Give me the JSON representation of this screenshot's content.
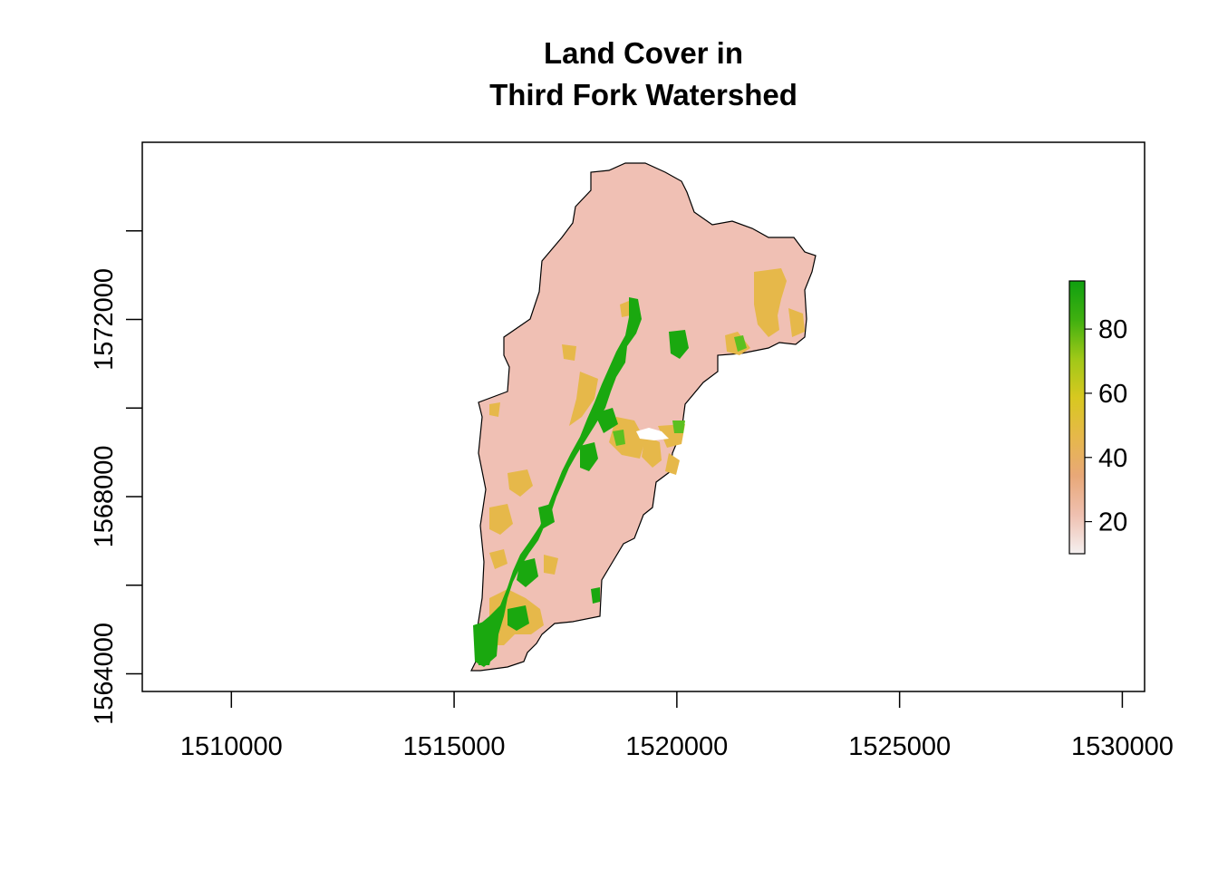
{
  "title": {
    "line1": "Land Cover in",
    "line2": "Third Fork Watershed"
  },
  "map": {
    "x_range": [
      1508000,
      1530500
    ],
    "y_range": [
      1563600,
      1576000
    ],
    "x_ticks": [
      1510000,
      1515000,
      1520000,
      1525000,
      1530000
    ],
    "y_ticks": [
      1564000,
      1566000,
      1568000,
      1570000,
      1572000,
      1574000
    ],
    "x_tick_labels": [
      "1510000",
      "1515000",
      "1520000",
      "1525000",
      "1530000"
    ],
    "y_tick_labels": [
      "1564000",
      "1568000",
      "1572000"
    ],
    "colors": {
      "background_cover": "#f0c0b4",
      "shrub": "#e6b84a",
      "forest": "#1aa80f",
      "light_forest": "#5cc020",
      "white_patch": "#ffffff",
      "outline": "#000000"
    }
  },
  "legend": {
    "value_range": [
      10,
      95
    ],
    "tick_values": [
      20,
      40,
      60,
      80
    ],
    "tick_labels": [
      "20",
      "40",
      "60",
      "80"
    ],
    "colors": [
      "#f5f0f0",
      "#efc0b0",
      "#e8a878",
      "#e6b84a",
      "#d8c820",
      "#a0c818",
      "#40b010",
      "#10a010"
    ]
  }
}
